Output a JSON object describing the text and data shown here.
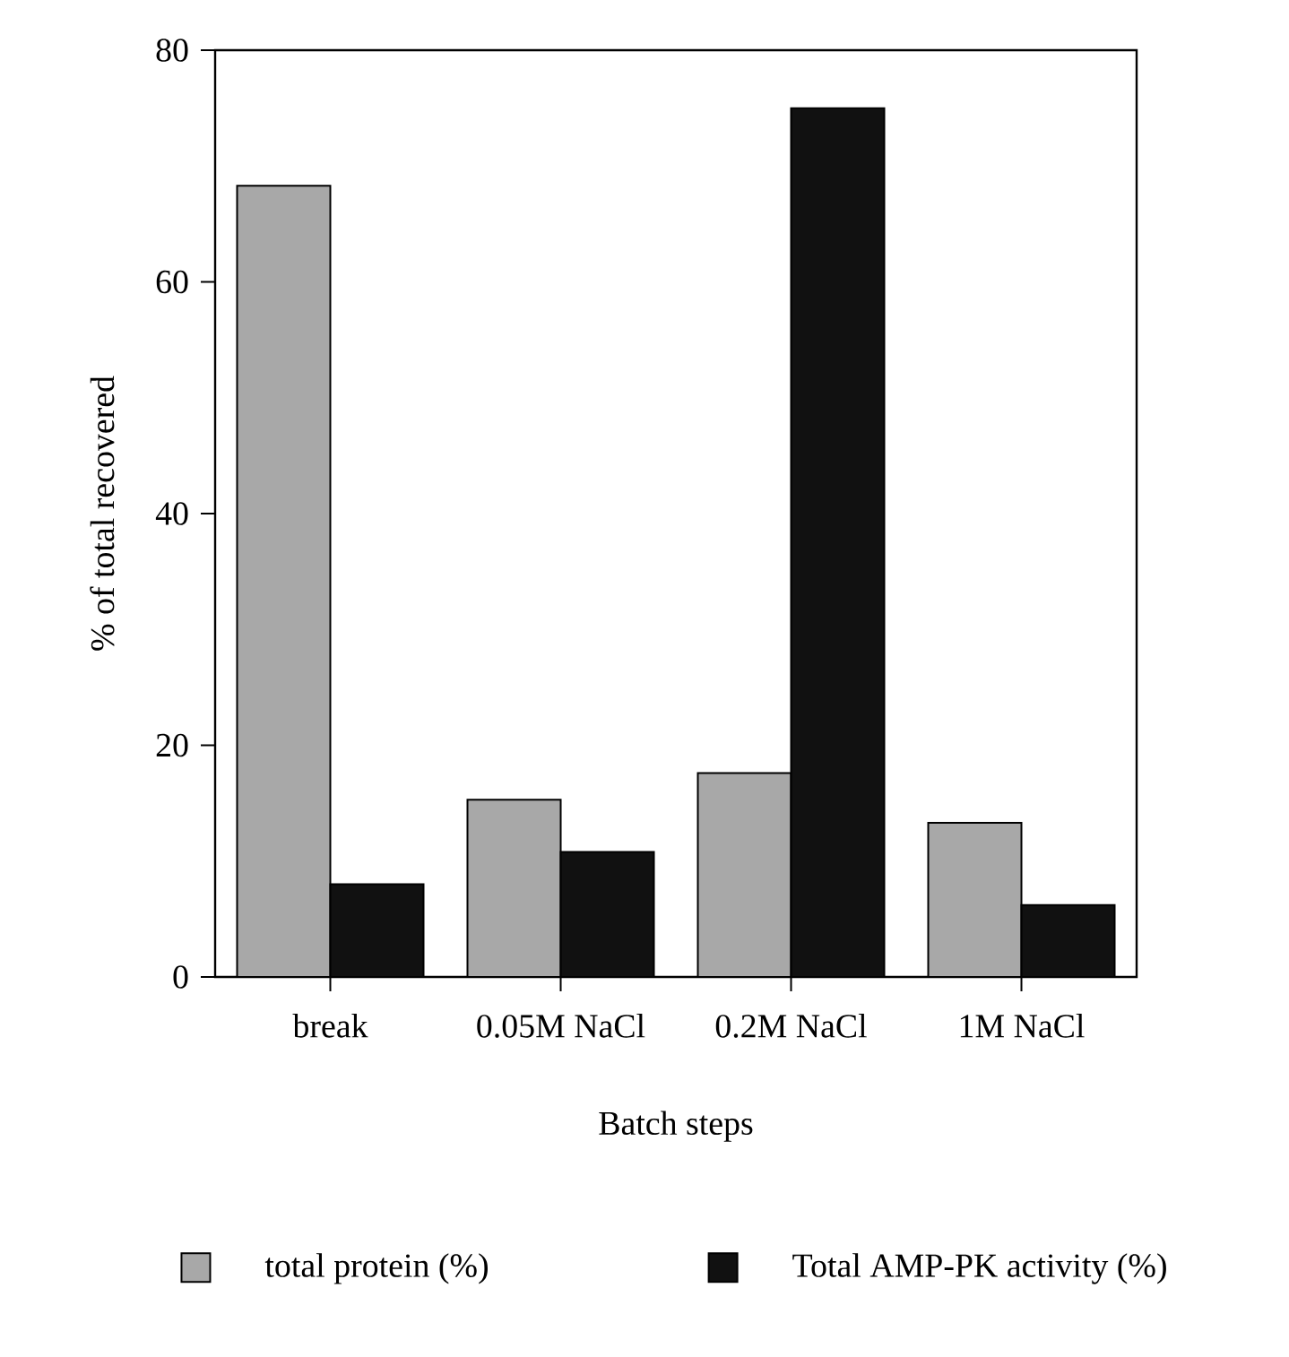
{
  "chart_data": {
    "type": "bar",
    "xlabel": "Batch steps",
    "ylabel": "% of total recovered",
    "categories": [
      "break",
      "0.05M NaCl",
      "0.2M NaCl",
      "1M NaCl"
    ],
    "series": [
      {
        "name": "total protein (%)",
        "color": "#a8a8a8",
        "values": [
          68.3,
          15.3,
          17.6,
          13.3
        ]
      },
      {
        "name": "Total AMP-PK activity (%)",
        "color": "#111111",
        "values": [
          8.0,
          10.8,
          75.0,
          6.2
        ]
      }
    ],
    "ylim": [
      0,
      80
    ],
    "yticks": [
      0,
      20,
      40,
      60,
      80
    ],
    "legend": "bottom"
  }
}
